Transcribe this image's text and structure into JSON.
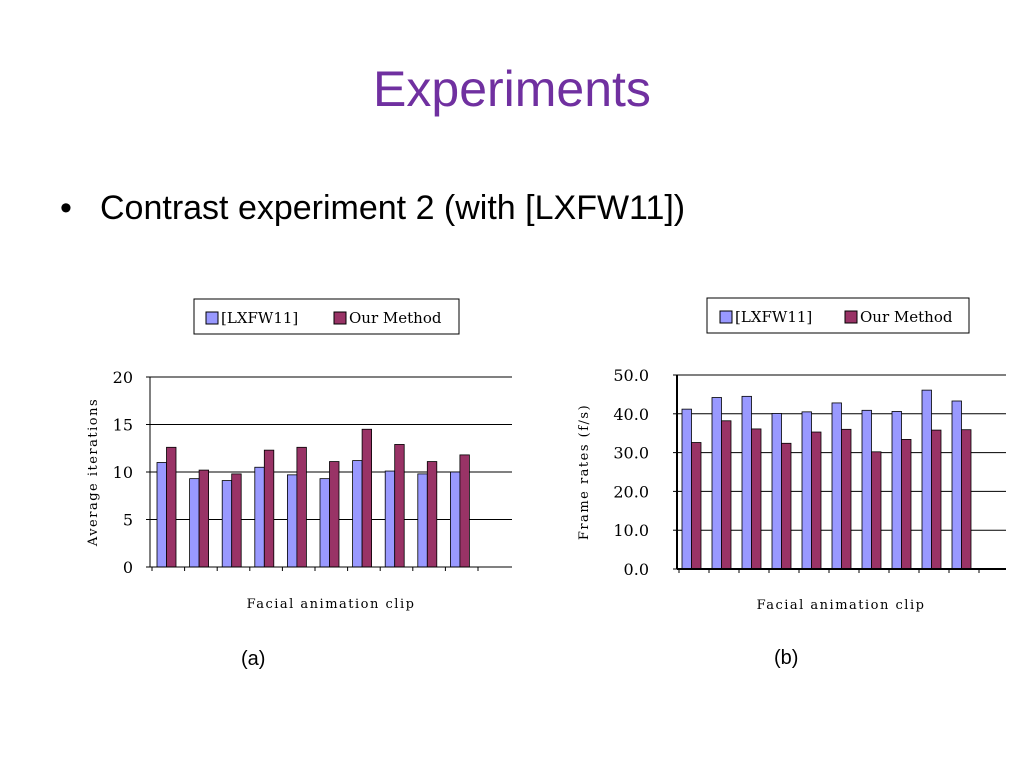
{
  "slide": {
    "title": "Experiments",
    "bullet_glyph": "•",
    "bullet": "Contrast experiment 2 (with [LXFW11])"
  },
  "captions": [
    "(a)",
    "(b)"
  ],
  "colors": {
    "series_1": "#9999FF",
    "series_2": "#993366",
    "title": "#7030A0"
  },
  "chart_data": [
    {
      "type": "bar",
      "categories": [
        "",
        "",
        "",
        "",
        "",
        "",
        "",
        "",
        "",
        ""
      ],
      "series": [
        {
          "name": "[LXFW11]",
          "values": [
            11.0,
            9.3,
            9.1,
            10.5,
            9.7,
            9.3,
            11.2,
            10.1,
            9.8,
            10.0
          ]
        },
        {
          "name": "Our Method",
          "values": [
            12.6,
            10.2,
            9.8,
            12.3,
            12.6,
            11.1,
            14.5,
            12.9,
            11.1,
            11.8
          ]
        }
      ],
      "ylim": [
        0,
        20
      ],
      "yticks": [
        "0",
        "5",
        "10",
        "15",
        "20"
      ],
      "xlabel": "Facial animation clip",
      "ylabel": "Average iterations",
      "legend_placement": "top",
      "grid": true
    },
    {
      "type": "bar",
      "categories": [
        "",
        "",
        "",
        "",
        "",
        "",
        "",
        "",
        "",
        ""
      ],
      "series": [
        {
          "name": "[LXFW11]",
          "values": [
            41.2,
            44.2,
            44.5,
            40.1,
            40.5,
            42.8,
            40.9,
            40.6,
            46.1,
            43.3
          ]
        },
        {
          "name": "Our Method",
          "values": [
            32.6,
            38.2,
            36.1,
            32.4,
            35.3,
            36.0,
            30.2,
            33.4,
            35.8,
            35.9
          ]
        }
      ],
      "ylim": [
        0,
        50
      ],
      "yticks": [
        "0.0",
        "10.0",
        "20.0",
        "30.0",
        "40.0",
        "50.0"
      ],
      "xlabel": "Facial animation clip",
      "ylabel": "Frame rates (f/s)",
      "legend_placement": "top",
      "grid": true
    }
  ]
}
